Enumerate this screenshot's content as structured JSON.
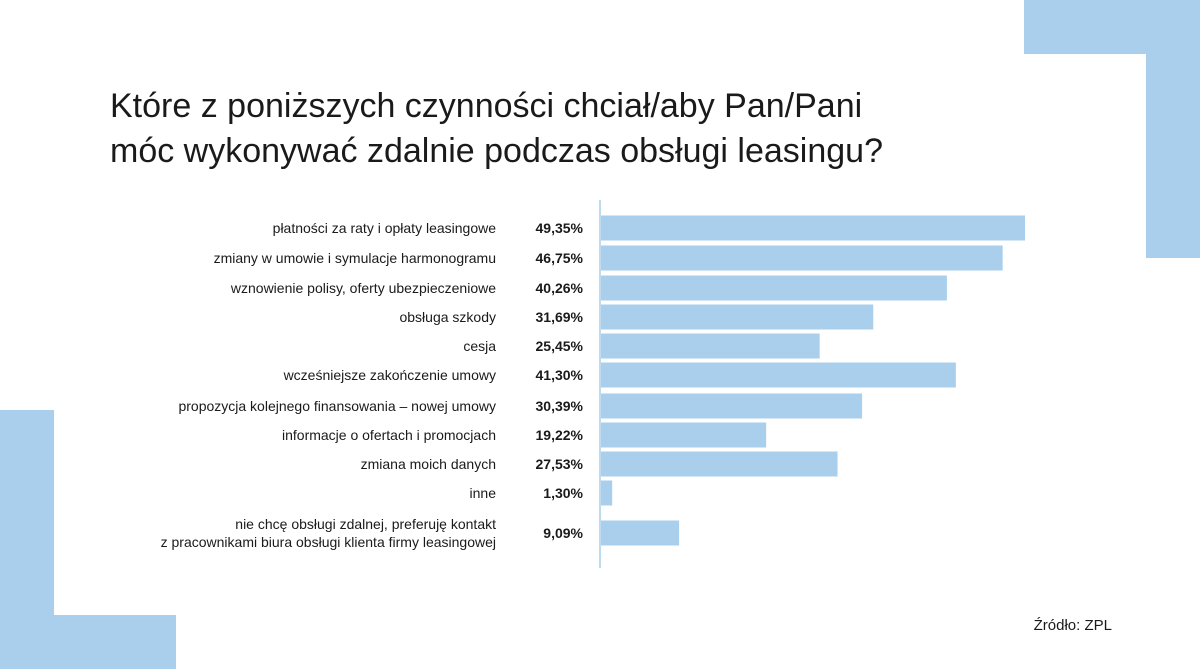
{
  "title_lines": [
    "Które z poniższych czynności chciał/aby Pan/Pani",
    "móc wykonywać zdalnie podczas obsługi leasingu?"
  ],
  "source": "Źródło: ZPL",
  "colors": {
    "bar": "#a9cfec",
    "decoration": "#a9cfec",
    "axis": "#a9cfec"
  },
  "chart_data": {
    "type": "bar",
    "orientation": "horizontal",
    "title": "Które z poniższych czynności chciał/aby Pan/Pani móc wykonywać zdalnie podczas obsługi leasingu?",
    "categories": [
      [
        "płatności za raty i opłaty leasingowe"
      ],
      [
        "zmiany w umowie i symulacje harmonogramu"
      ],
      [
        "wznowienie polisy, oferty ubezpieczeniowe"
      ],
      [
        "obsługa szkody"
      ],
      [
        "cesja"
      ],
      [
        "wcześniejsze zakończenie umowy"
      ],
      [
        "propozycja kolejnego finansowania – nowej umowy"
      ],
      [
        "informacje o ofertach i promocjach"
      ],
      [
        "zmiana moich danych"
      ],
      [
        "inne"
      ],
      [
        "nie chcę obsługi zdalnej, preferuję kontakt",
        "z pracownikami biura obsługi klienta firmy leasingowej"
      ]
    ],
    "values": [
      49.35,
      46.75,
      40.26,
      31.69,
      25.45,
      41.3,
      30.39,
      19.22,
      27.53,
      1.3,
      9.09
    ],
    "value_labels": [
      "49,35%",
      "46,75%",
      "40,26%",
      "31,69%",
      "25,45%",
      "41,30%",
      "30,39%",
      "19,22%",
      "27,53%",
      "1,30%",
      "9,09%"
    ],
    "unit": "%",
    "grid": false,
    "legend": "none"
  }
}
